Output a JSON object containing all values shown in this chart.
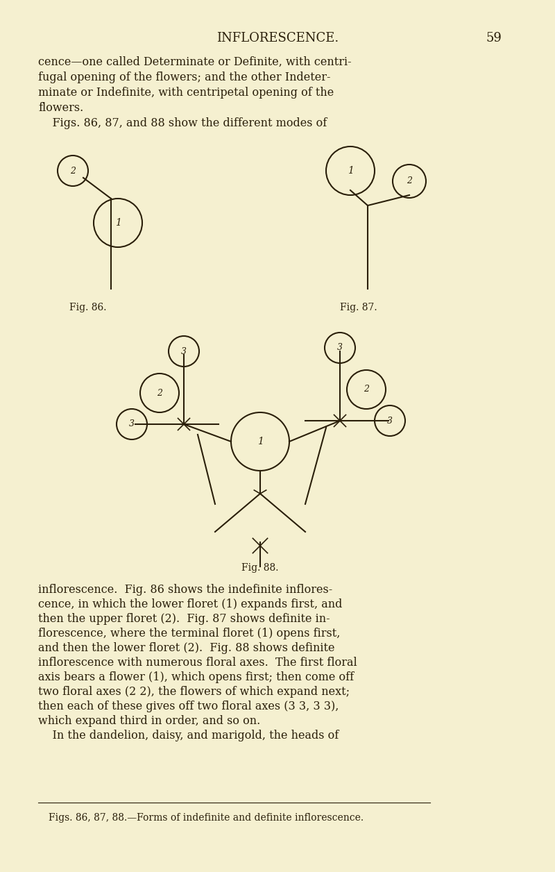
{
  "bg_color": "#f5f0d0",
  "page_color": "#f0ebc0",
  "text_color": "#2a1f0a",
  "title": "INFLORESCENCE.",
  "page_number": "59",
  "header_fontsize": 13,
  "body_fontsize": 11.5,
  "caption_fontsize": 10,
  "line1": "cence—one called Determinate or Definite, with centri-",
  "line2": "fugal opening of the flowers; and the other Indeter-",
  "line3": "minate or Indefinite, with centripetal opening of the",
  "line4": "flowers.",
  "line5": "    Figs. 86, 87, and 88 show the different modes of",
  "line_body1": "inflorescence.  Fig. 86 shows the indefinite inflores-",
  "line_body2": "cence, in which the lower floret (1) expands first, and",
  "line_body3": "then the upper floret (2).  Fig. 87 shows definite in-",
  "line_body4": "florescence, where the terminal floret (1) opens first,",
  "line_body5": "and then the lower floret (2).  Fig. 88 shows definite",
  "line_body6": "inflorescence with numerous floral axes.  The first floral",
  "line_body7": "axis bears a flower (1), which opens first; then come off",
  "line_body8": "two floral axes (2 2), the flowers of which expand next;",
  "line_body9": "then each of these gives off two floral axes (3 3, 3 3),",
  "line_body10": "which expand third in order, and so on.",
  "line_body11": "    In the dandelion, daisy, and marigold, the heads of",
  "caption_line": "Figs. 86, 87, 88.—Forms of indefinite and definite inflorescence."
}
